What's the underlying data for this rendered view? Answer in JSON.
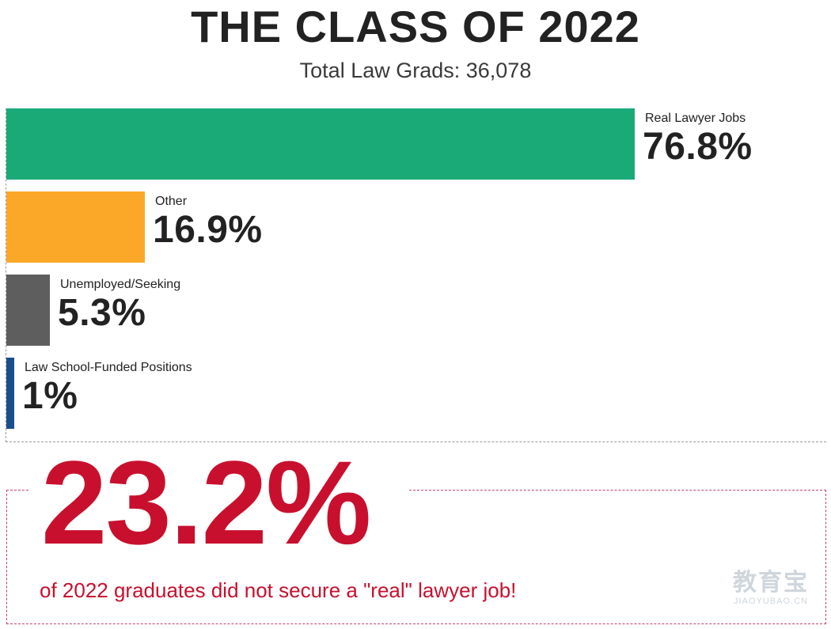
{
  "header": {
    "title": "THE CLASS OF 2022",
    "subtitle": "Total Law Grads: 36,078"
  },
  "chart_data": {
    "type": "bar",
    "orientation": "horizontal",
    "title": "THE CLASS OF 2022",
    "subtitle": "Total Law Grads: 36,078",
    "categories": [
      "Real Lawyer Jobs",
      "Other",
      "Unemployed/Seeking",
      "Law School-Funded Positions"
    ],
    "values": [
      76.8,
      16.9,
      5.3,
      1
    ],
    "value_labels": [
      "76.8%",
      "16.9%",
      "5.3%",
      "1%"
    ],
    "colors": [
      "#1aaa78",
      "#fba829",
      "#5e5e5e",
      "#1b4f8c"
    ],
    "xlim": [
      0,
      100
    ],
    "grid": false,
    "legend": "none"
  },
  "callout": {
    "value": "23.2%",
    "text": "of 2022 graduates did not secure a \"real\" lawyer job!",
    "color": "#c8102e"
  },
  "watermark": {
    "main": "教育宝",
    "sub": "JIAOYUBAO.CN"
  }
}
